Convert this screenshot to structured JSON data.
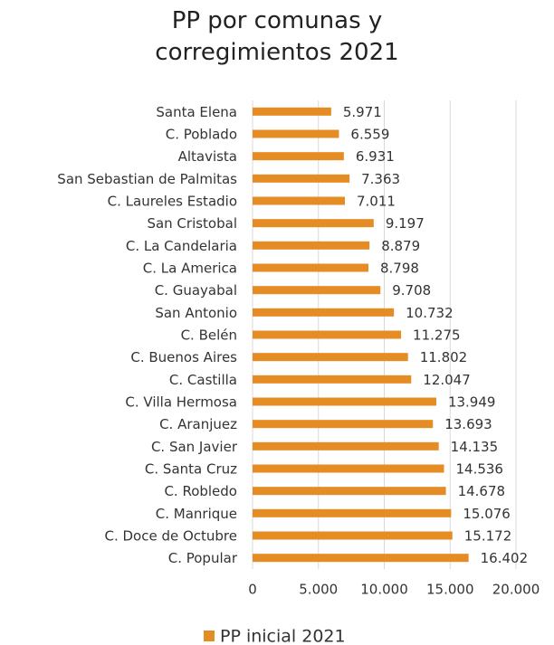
{
  "chart_data": {
    "type": "barh",
    "title": "PP por comunas y corregimientos 2021",
    "categories": [
      "Santa Elena",
      "C. Poblado",
      "Altavista",
      "San Sebastian de Palmitas",
      "C. Laureles Estadio",
      "San Cristobal",
      "C. La Candelaria",
      "C. La America",
      "C. Guayabal",
      "San Antonio",
      "C. Belén",
      "C. Buenos Aires",
      "C. Castilla",
      "C. Villa Hermosa",
      "C. Aranjuez",
      "C. San Javier",
      "C. Santa Cruz",
      "C. Robledo",
      "C. Manrique",
      "C. Doce de Octubre",
      "C. Popular"
    ],
    "series": [
      {
        "name": "PP inicial 2021",
        "color": "#e58c24",
        "values": [
          5971,
          6559,
          6931,
          7363,
          7011,
          9197,
          8879,
          8798,
          9708,
          10732,
          11275,
          11802,
          12047,
          13949,
          13693,
          14135,
          14536,
          14678,
          15076,
          15172,
          16402
        ],
        "value_labels": [
          "5.971",
          "6.559",
          "6.931",
          "7.363",
          "7.011",
          "9.197",
          "8.879",
          "8.798",
          "9.708",
          "10.732",
          "11.275",
          "11.802",
          "12.047",
          "13.949",
          "13.693",
          "14.135",
          "14.536",
          "14.678",
          "15.076",
          "15.172",
          "16.402"
        ]
      }
    ],
    "xlim": [
      0,
      20000
    ],
    "xticks": [
      0,
      {
        "value": 5000,
        "label": "5.000"
      },
      {
        "value": 10000,
        "label": "10.000"
      },
      {
        "value": 15000,
        "label": "15.000"
      },
      {
        "value": 20000,
        "label": "20.000"
      }
    ],
    "grid": true,
    "legend": "bottom"
  }
}
